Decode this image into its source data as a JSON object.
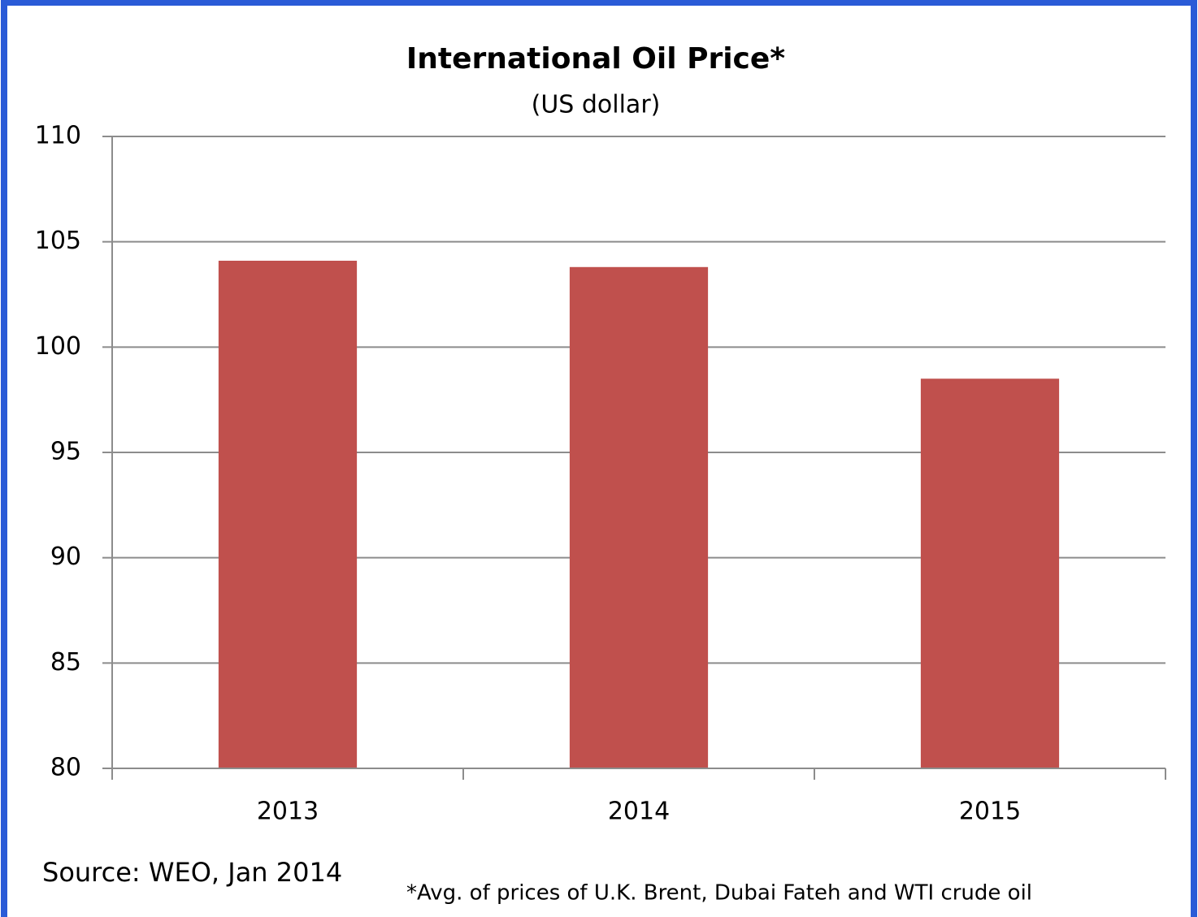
{
  "chart_data": {
    "type": "bar",
    "title": "International Oil Price*",
    "subtitle": "(US dollar)",
    "categories": [
      "2013",
      "2014",
      "2015"
    ],
    "values": [
      104.1,
      103.8,
      98.5
    ],
    "color": "#c0504d",
    "ylim": [
      80,
      110
    ],
    "yticks": [
      80,
      85,
      90,
      95,
      100,
      105,
      110
    ],
    "grid": true,
    "source": "Source: WEO, Jan 2014",
    "note": "*Avg. of prices of U.K. Brent, Dubai Fateh and WTI crude oil"
  }
}
